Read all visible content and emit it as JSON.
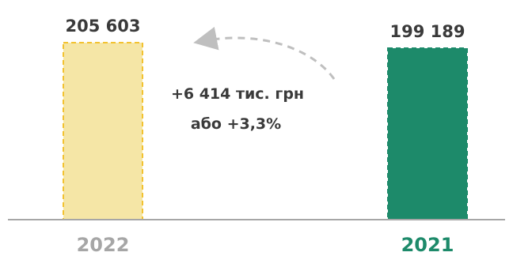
{
  "chart_data": {
    "type": "bar",
    "categories": [
      "2022",
      "2021"
    ],
    "values": [
      205603,
      199189
    ],
    "value_labels": [
      "205 603",
      "199 189"
    ],
    "title": "",
    "xlabel": "",
    "ylabel": "",
    "ylim": [
      0,
      205603
    ],
    "grid": false,
    "annotation": {
      "line1": "+6 414 тис. грн",
      "line2": "або +3,3%"
    }
  },
  "colors": {
    "bar_2022_fill": "#f5e6a6",
    "bar_2022_border": "#f2c230",
    "bar_2021_fill": "#1d8a6a",
    "bar_2021_border": "#1d8a6a",
    "label_2022": "#a6a6a6",
    "label_2021": "#1d8a6a",
    "baseline": "#a6a6a6",
    "arrow": "#bfbfbf"
  }
}
